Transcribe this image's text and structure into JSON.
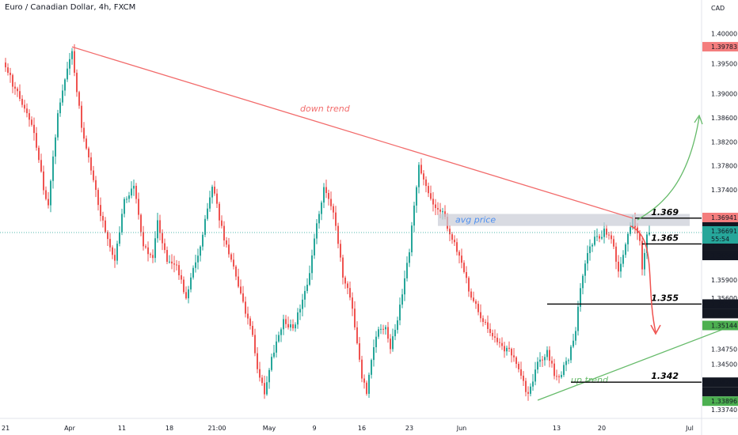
{
  "header": {
    "title": "Euro / Canadian Dollar, 4h, FXCM",
    "currency": "CAD"
  },
  "chart_data": {
    "type": "candlestick",
    "title": "Euro / Canadian Dollar, 4h, FXCM",
    "ylim": [
      1.3365,
      1.4035
    ],
    "grid": false,
    "y_ticks": [
      "1.40000",
      "1.39500",
      "1.39000",
      "1.38600",
      "1.38200",
      "1.37800",
      "1.37400",
      "1.36941",
      "1.36930",
      "1.36691",
      "1.36500",
      "1.35900",
      "1.35600",
      "1.35500",
      "1.35144",
      "1.34750",
      "1.34500",
      "1.34200",
      "1.33896",
      "1.33740"
    ],
    "x_ticks": [
      {
        "label": "21",
        "bar": -2
      },
      {
        "label": "Apr",
        "bar": 27
      },
      {
        "label": "11",
        "bar": 49
      },
      {
        "label": "18",
        "bar": 69
      },
      {
        "label": "21:00",
        "bar": 89
      },
      {
        "label": "May",
        "bar": 111
      },
      {
        "label": "9",
        "bar": 130
      },
      {
        "label": "16",
        "bar": 150
      },
      {
        "label": "23",
        "bar": 170
      },
      {
        "label": "Jun",
        "bar": 192
      },
      {
        "label": "13",
        "bar": 232
      },
      {
        "label": "20",
        "bar": 251
      },
      {
        "label": "Jul",
        "bar": 288
      }
    ],
    "anchors": [
      [
        0,
        1.395
      ],
      [
        4,
        1.3905
      ],
      [
        8,
        1.388
      ],
      [
        12,
        1.3835
      ],
      [
        16,
        1.3745
      ],
      [
        18,
        1.3715
      ],
      [
        22,
        1.387
      ],
      [
        26,
        1.3938
      ],
      [
        28,
        1.3968
      ],
      [
        32,
        1.3845
      ],
      [
        36,
        1.377
      ],
      [
        40,
        1.37
      ],
      [
        44,
        1.364
      ],
      [
        46,
        1.362
      ],
      [
        50,
        1.372
      ],
      [
        54,
        1.375
      ],
      [
        58,
        1.365
      ],
      [
        62,
        1.3625
      ],
      [
        64,
        1.3685
      ],
      [
        68,
        1.362
      ],
      [
        72,
        1.3615
      ],
      [
        76,
        1.356
      ],
      [
        82,
        1.365
      ],
      [
        87,
        1.3745
      ],
      [
        92,
        1.366
      ],
      [
        96,
        1.361
      ],
      [
        100,
        1.355
      ],
      [
        104,
        1.35
      ],
      [
        106,
        1.3445
      ],
      [
        109,
        1.34
      ],
      [
        113,
        1.3475
      ],
      [
        117,
        1.352
      ],
      [
        121,
        1.351
      ],
      [
        124,
        1.3545
      ],
      [
        128,
        1.36
      ],
      [
        131,
        1.368
      ],
      [
        134,
        1.3745
      ],
      [
        138,
        1.3705
      ],
      [
        142,
        1.36
      ],
      [
        146,
        1.3545
      ],
      [
        150,
        1.343
      ],
      [
        152,
        1.3405
      ],
      [
        156,
        1.35
      ],
      [
        160,
        1.3515
      ],
      [
        162,
        1.3475
      ],
      [
        166,
        1.3545
      ],
      [
        170,
        1.364
      ],
      [
        174,
        1.378
      ],
      [
        176,
        1.376
      ],
      [
        180,
        1.372
      ],
      [
        184,
        1.37
      ],
      [
        188,
        1.366
      ],
      [
        192,
        1.362
      ],
      [
        196,
        1.356
      ],
      [
        200,
        1.353
      ],
      [
        204,
        1.35
      ],
      [
        208,
        1.348
      ],
      [
        212,
        1.347
      ],
      [
        216,
        1.3445
      ],
      [
        220,
        1.3395
      ],
      [
        224,
        1.3455
      ],
      [
        228,
        1.347
      ],
      [
        232,
        1.3425
      ],
      [
        236,
        1.345
      ],
      [
        240,
        1.35
      ],
      [
        242,
        1.358
      ],
      [
        244,
        1.362
      ],
      [
        248,
        1.366
      ],
      [
        252,
        1.367
      ],
      [
        256,
        1.365
      ],
      [
        258,
        1.36
      ],
      [
        261,
        1.365
      ],
      [
        264,
        1.3688
      ],
      [
        267,
        1.365
      ],
      [
        268,
        1.3605
      ],
      [
        270,
        1.3665
      ],
      [
        271,
        1.3669
      ]
    ],
    "current_price": "1.36691",
    "countdown": "55:54",
    "price_labels": [
      {
        "value": "1.39783",
        "role": "high"
      },
      {
        "value": "1.36941",
        "role": "bid"
      },
      {
        "value": "1.36930",
        "role": "level"
      },
      {
        "value": "1.36930",
        "role": "level"
      },
      {
        "value": "1.36500",
        "role": "level"
      },
      {
        "value": "1.36500",
        "role": "level"
      },
      {
        "value": "1.35500",
        "role": "level"
      },
      {
        "value": "1.35500",
        "role": "level"
      },
      {
        "value": "1.34200",
        "role": "level"
      },
      {
        "value": "1.34200",
        "role": "level"
      },
      {
        "value": "1.35144",
        "role": "trend"
      },
      {
        "value": "1.33896",
        "role": "low"
      }
    ],
    "annotations": {
      "down_trend_label": "down trend",
      "up_trend_label": "up trend",
      "avg_price_label": "avg price",
      "down_trend": {
        "from": [
          28,
          1.3978
        ],
        "to": [
          264,
          1.3693
        ]
      },
      "up_trend": {
        "from": [
          224,
          1.339
        ],
        "to": [
          306,
          1.3514
        ]
      },
      "avg_zone": {
        "from_bar": 182,
        "to_bar": 288,
        "low": 1.368,
        "high": 1.37
      },
      "levels": [
        {
          "label": "1.369",
          "value": 1.3693,
          "from_bar": 265
        },
        {
          "label": "1.365",
          "value": 1.365,
          "from_bar": 268
        },
        {
          "label": "1.355",
          "value": 1.355,
          "from_bar": 228
        },
        {
          "label": "1.342",
          "value": 1.342,
          "from_bar": 238
        }
      ]
    },
    "colors": {
      "up": "#26a69a",
      "down": "#ef5350",
      "trend_down": "#f26b6b",
      "trend_up": "#66bb6a",
      "zone": "#c9ccd6",
      "avg_text": "#4d8ff0",
      "axis_text": "#131722",
      "high_label_bg": "#f47d7d",
      "bid_label_bg": "#f47d7d",
      "dark_label_bg": "#131722",
      "trend_label_bg": "#4caf50",
      "low_label_bg": "#4caf50",
      "price_label_bg": "#26a69a"
    }
  }
}
